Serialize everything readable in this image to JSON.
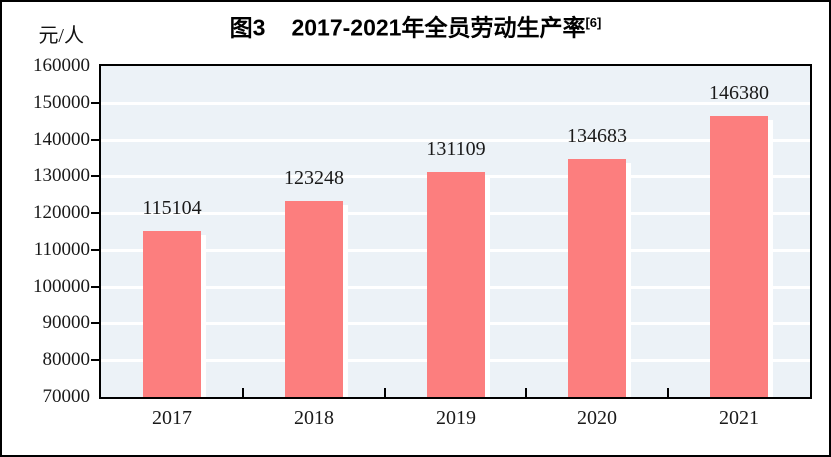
{
  "title": {
    "figure_no": "图3",
    "text": "2017-2021年全员劳动生产率",
    "superscript": "[6]"
  },
  "chart_data": {
    "type": "bar",
    "title": "图3 2017-2021年全员劳动生产率[6]",
    "categories": [
      "2017",
      "2018",
      "2019",
      "2020",
      "2021"
    ],
    "values": [
      115104,
      123248,
      131109,
      134683,
      146380
    ],
    "data_labels": [
      "115104",
      "123248",
      "131109",
      "134683",
      "146380"
    ],
    "xlabel": "",
    "ylabel": "元/人",
    "ylim": [
      70000,
      160000
    ],
    "ytick_step": 10000,
    "ytick_labels": [
      "160000",
      "150000",
      "140000",
      "130000",
      "120000",
      "110000",
      "100000",
      "90000",
      "80000",
      "70000"
    ],
    "grid": true,
    "legend_position": "none",
    "colors": {
      "bar": "#FC7E7E",
      "bar_shadow": "#FFFFFF",
      "plot_background": "#ECF2F7",
      "gridline": "#FFFFFF",
      "axis": "#000000",
      "text": "#1A1A1A"
    }
  }
}
